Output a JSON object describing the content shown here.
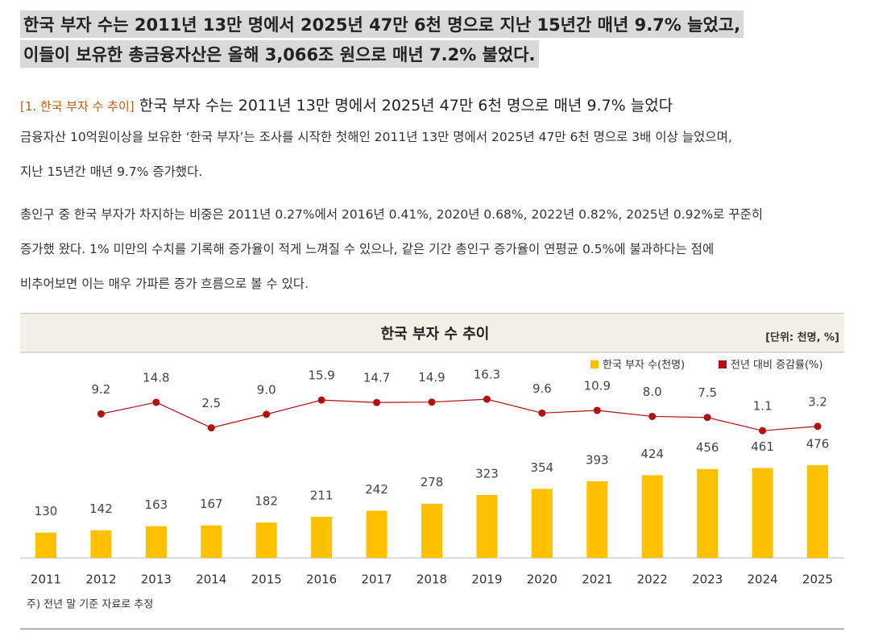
{
  "headline": [
    "한국 부자 수는 2011년 13만 명에서 2025년 47만 6천 명으로 지난 15년간 매년 9.7% 늘었고,",
    "이들이 보유한 총금융자산은 올해 3,066조 원으로 매년 7.2% 불었다."
  ],
  "section": {
    "label": "[1. 한국 부자 수 추이]",
    "title": "한국 부자 수는 2011년 13만 명에서 2025년 47만 6천 명으로 매년 9.7% 늘었다"
  },
  "paragraphs": [
    [
      "금융자산 10억원이상을 보유한 ‘한국 부자’는 조사를 시작한 첫해인 2011년 13만 명에서 2025년 47만 6천 명으로 3배 이상 늘었으며,",
      "지난 15년간 매년 9.7% 증가했다."
    ],
    [
      "총인구 중 한국 부자가 차지하는 비중은 2011년 0.27%에서 2016년 0.41%, 2020년 0.68%, 2022년 0.82%, 2025년 0.92%로 꾸준히",
      "증가했 왔다. 1% 미만의 수치를 기록해 증가율이 적게 느껴질 수 있으나, 같은 기간 총인구 증가율이 연평균 0.5%에 불과하다는 점에",
      "비추어보면 이는 매우 가파른 증가 흐름으로 볼 수 있다."
    ]
  ],
  "chart_data": {
    "type": "bar-line",
    "title": "한국 부자 수 추이",
    "unit": "[단위: 천명, %]",
    "note": "주) 전년 말 기준 자료로 추정",
    "categories": [
      "2011",
      "2012",
      "2013",
      "2014",
      "2015",
      "2016",
      "2017",
      "2018",
      "2019",
      "2020",
      "2021",
      "2022",
      "2023",
      "2024",
      "2025"
    ],
    "series": [
      {
        "name": "한국 부자 수(천명)",
        "color": "#ffc000",
        "type": "bar",
        "values": [
          130,
          142,
          163,
          167,
          182,
          211,
          242,
          278,
          323,
          354,
          393,
          424,
          456,
          461,
          476
        ]
      },
      {
        "name": "전년 대비 증감률(%)",
        "color": "#b50e0e",
        "type": "line",
        "values": [
          null,
          9.2,
          14.8,
          2.5,
          9.0,
          15.9,
          14.7,
          14.9,
          16.3,
          9.6,
          10.9,
          8.0,
          7.5,
          1.1,
          3.2
        ],
        "value_labels": [
          null,
          "9.2",
          "14.8",
          "2.5",
          "9.0",
          "15.9",
          "14.7",
          "14.9",
          "16.3",
          "9.6",
          "10.9",
          "8.0",
          "7.5",
          "1.1",
          "3.2"
        ]
      }
    ]
  }
}
